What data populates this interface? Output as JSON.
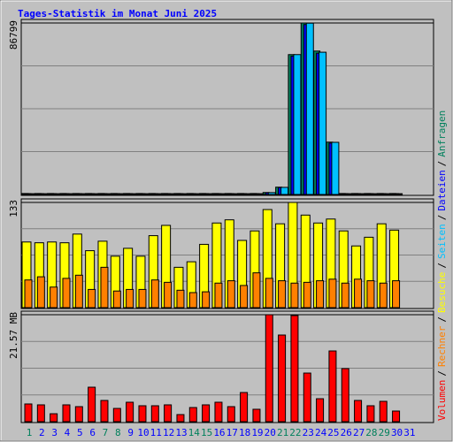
{
  "chart_data": [
    {
      "type": "bar",
      "title": "Tages-Statistik im Monat Juni 2025",
      "legend_separator": "/",
      "ylim": [
        0,
        86799
      ],
      "yticks": [
        86799
      ],
      "series": [
        {
          "name": "Anfragen",
          "color": "#00805c",
          "values": [
            500,
            500,
            500,
            500,
            500,
            500,
            500,
            500,
            500,
            500,
            500,
            500,
            500,
            500,
            500,
            500,
            500,
            500,
            500,
            1000,
            3700,
            70800,
            86799,
            72600,
            26500,
            500,
            500,
            500,
            500,
            500,
            0
          ]
        },
        {
          "name": "Dateien",
          "color": "#0000ff",
          "values": [
            450,
            450,
            450,
            450,
            450,
            450,
            450,
            450,
            450,
            450,
            450,
            450,
            450,
            450,
            450,
            450,
            450,
            450,
            450,
            900,
            3500,
            70000,
            86000,
            71500,
            26000,
            450,
            450,
            450,
            450,
            450,
            0
          ]
        },
        {
          "name": "Seiten",
          "color": "#00c0ff",
          "values": [
            400,
            400,
            400,
            400,
            400,
            400,
            400,
            400,
            400,
            400,
            400,
            400,
            400,
            400,
            400,
            400,
            400,
            400,
            400,
            950,
            3600,
            70800,
            86700,
            72000,
            26400,
            400,
            400,
            400,
            400,
            400,
            0
          ]
        }
      ]
    },
    {
      "type": "bar",
      "ylim": [
        0,
        133
      ],
      "yticks": [
        133
      ],
      "series": [
        {
          "name": "Besuche",
          "color": "#ffff00",
          "values": [
            83,
            82,
            83,
            82,
            93,
            72,
            84,
            65,
            75,
            65,
            91,
            104,
            51,
            58,
            80,
            107,
            111,
            85,
            97,
            124,
            106,
            133,
            117,
            107,
            112,
            97,
            78,
            89,
            106,
            98,
            0
          ]
        },
        {
          "name": "Rechner",
          "color": "#ff8000",
          "values": [
            35,
            39,
            26,
            37,
            41,
            23,
            51,
            21,
            23,
            23,
            35,
            32,
            22,
            19,
            20,
            31,
            34,
            28,
            44,
            37,
            34,
            31,
            32,
            34,
            36,
            31,
            36,
            34,
            31,
            34,
            0
          ]
        }
      ]
    },
    {
      "type": "bar",
      "ylim": [
        0,
        21.57
      ],
      "yticks": [
        {
          "value": 21.57,
          "label": "21.57 MB"
        }
      ],
      "categories": [
        "1",
        "2",
        "3",
        "4",
        "5",
        "6",
        "7",
        "8",
        "9",
        "10",
        "11",
        "12",
        "13",
        "14",
        "15",
        "16",
        "17",
        "18",
        "19",
        "20",
        "21",
        "22",
        "23",
        "24",
        "25",
        "26",
        "27",
        "28",
        "29",
        "30",
        "31"
      ],
      "category_colors": [
        "#00805c",
        "#0000ff",
        "#0000ff",
        "#0000ff",
        "#0000ff",
        "#0000ff",
        "#00805c",
        "#00805c",
        "#0000ff",
        "#0000ff",
        "#0000ff",
        "#0000ff",
        "#0000ff",
        "#00805c",
        "#00805c",
        "#0000ff",
        "#0000ff",
        "#0000ff",
        "#0000ff",
        "#0000ff",
        "#00805c",
        "#00805c",
        "#0000ff",
        "#0000ff",
        "#0000ff",
        "#0000ff",
        "#0000ff",
        "#00805c",
        "#00805c",
        "#0000ff",
        "#0000ff"
      ],
      "series": [
        {
          "name": "Volumen",
          "color": "#ff0000",
          "values": [
            3.57,
            3.39,
            1.6,
            3.39,
            3.03,
            6.95,
            4.28,
            2.67,
            3.92,
            3.21,
            3.21,
            3.39,
            1.43,
            2.85,
            3.39,
            3.92,
            3.03,
            5.88,
            2.5,
            21.57,
            17.47,
            21.39,
            9.8,
            4.63,
            14.26,
            10.7,
            4.28,
            3.21,
            4.1,
            2.14,
            0
          ]
        }
      ]
    }
  ]
}
